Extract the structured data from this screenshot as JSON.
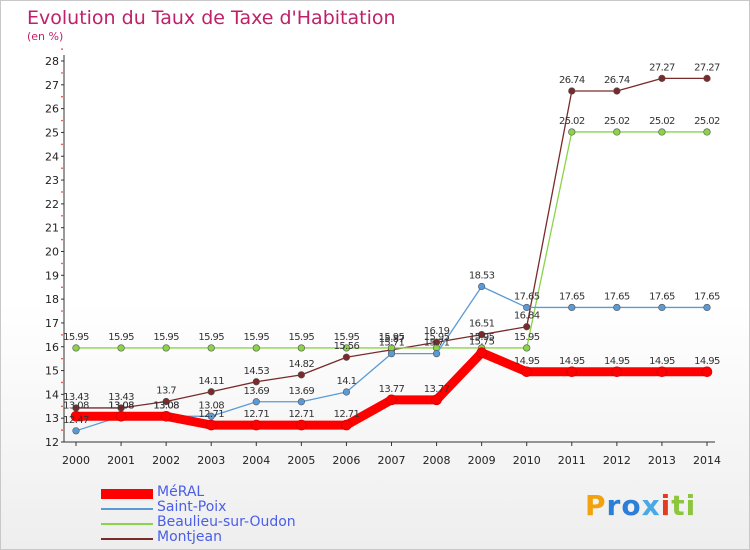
{
  "title": "Evolution du Taux de Taxe d'Habitation",
  "unit_label": "(en %)",
  "logo": {
    "letters": [
      "P",
      "r",
      "o",
      "x",
      "i",
      "t",
      "i"
    ],
    "colors": [
      "#f2a20c",
      "#2c7fd8",
      "#2c7fd8",
      "#4aa8e6",
      "#e23c20",
      "#8cc63f",
      "#8cc63f"
    ]
  },
  "chart_data": {
    "type": "line",
    "x": [
      2000,
      2001,
      2002,
      2003,
      2004,
      2005,
      2006,
      2007,
      2008,
      2009,
      2010,
      2011,
      2012,
      2013,
      2014
    ],
    "ylim": [
      12,
      28
    ],
    "yticks": [
      12,
      13,
      14,
      15,
      16,
      17,
      18,
      19,
      20,
      21,
      22,
      23,
      24,
      25,
      26,
      27,
      28
    ],
    "grid": false,
    "legend": "bottom-left",
    "series": [
      {
        "name": "MéRAL",
        "color": "#ff0000",
        "values": [
          13.08,
          13.08,
          13.08,
          12.71,
          12.71,
          12.71,
          12.71,
          13.77,
          13.77,
          15.75,
          14.95,
          14.95,
          14.95,
          14.95,
          14.95
        ],
        "labels": [
          "13.08",
          "13.08",
          "13.08",
          "12.71",
          "12.71",
          "12.71",
          "12.71",
          "13.77",
          "13.77",
          "15.75",
          "14.95",
          "14.95",
          "14.95",
          "14.95",
          "14.95"
        ]
      },
      {
        "name": "Saint-Poix",
        "color": "#5b9bd5",
        "values": [
          12.47,
          13.08,
          13.08,
          13.08,
          13.69,
          13.69,
          14.1,
          15.71,
          15.71,
          18.53,
          17.65,
          17.65,
          17.65,
          17.65,
          17.65
        ],
        "labels": [
          "12.47",
          "13.08",
          "13.08",
          "13.08",
          "13.69",
          "13.69",
          "14.1",
          "15.71",
          "15.71",
          "18.53",
          "17.65",
          "17.65",
          "17.65",
          "17.65",
          "17.65"
        ]
      },
      {
        "name": "Beaulieu-sur-Oudon",
        "color": "#8bd44a",
        "values": [
          15.95,
          15.95,
          15.95,
          15.95,
          15.95,
          15.95,
          15.95,
          15.95,
          15.95,
          15.95,
          15.95,
          25.02,
          25.02,
          25.02,
          25.02
        ],
        "labels": [
          "15.95",
          "15.95",
          "15.95",
          "15.95",
          "15.95",
          "15.95",
          "15.95",
          "15.95",
          "15.95",
          "15.95",
          "15.95",
          "25.02",
          "25.02",
          "25.02",
          "25.02"
        ]
      },
      {
        "name": "Montjean",
        "color": "#7a2a2a",
        "values": [
          13.43,
          13.43,
          13.7,
          14.11,
          14.53,
          14.82,
          15.56,
          15.87,
          16.19,
          16.51,
          16.84,
          26.74,
          26.74,
          27.27,
          27.27
        ],
        "labels": [
          "13.43",
          "13.43",
          "13.7",
          "14.11",
          "14.53",
          "14.82",
          "15.56",
          "15.87",
          "16.19",
          "16.51",
          "16.84",
          "26.74",
          "26.74",
          "27.27",
          "27.27"
        ]
      }
    ]
  }
}
